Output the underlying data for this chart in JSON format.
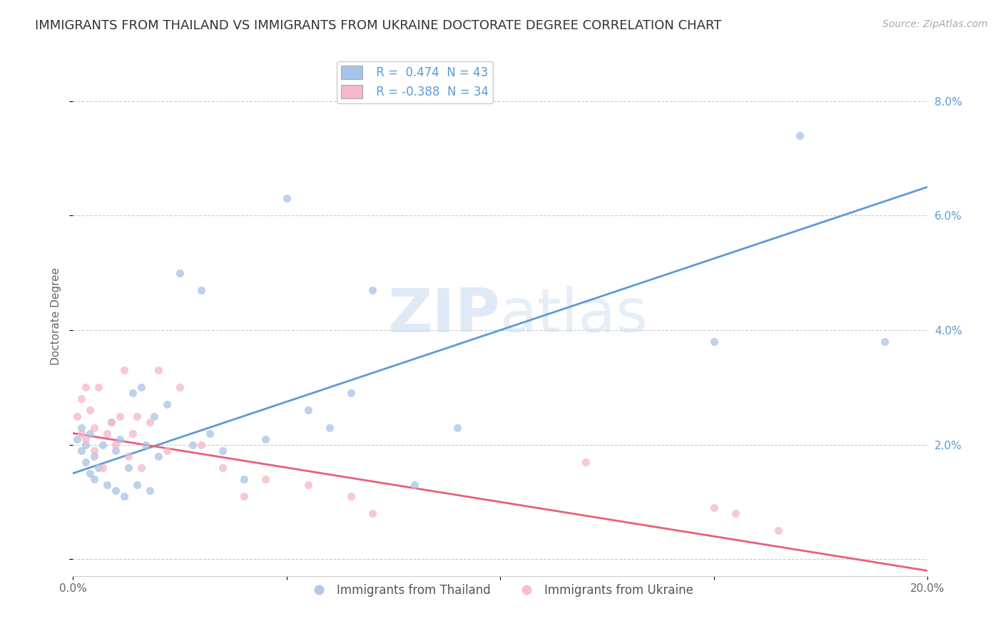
{
  "title": "IMMIGRANTS FROM THAILAND VS IMMIGRANTS FROM UKRAINE DOCTORATE DEGREE CORRELATION CHART",
  "source": "Source: ZipAtlas.com",
  "xlabel": "",
  "ylabel": "Doctorate Degree",
  "legend_label1": "Immigrants from Thailand",
  "legend_label2": "Immigrants from Ukraine",
  "R1": 0.474,
  "N1": 43,
  "R2": -0.388,
  "N2": 34,
  "color1": "#a8c4e8",
  "color2": "#f5b8c8",
  "line_color1": "#5b9bd5",
  "line_color2": "#e8607a",
  "watermark": "ZIPatlas",
  "xlim": [
    0.0,
    0.2
  ],
  "ylim": [
    -0.003,
    0.088
  ],
  "x_ticks": [
    0.0,
    0.05,
    0.1,
    0.15,
    0.2
  ],
  "y_ticks_right": [
    0.0,
    0.02,
    0.04,
    0.06,
    0.08
  ],
  "background_color": "#ffffff",
  "grid_color": "#cccccc",
  "title_fontsize": 13,
  "scatter_alpha": 0.75,
  "scatter_size": 55,
  "thailand_x": [
    0.001,
    0.002,
    0.002,
    0.003,
    0.003,
    0.004,
    0.004,
    0.005,
    0.005,
    0.006,
    0.007,
    0.008,
    0.009,
    0.01,
    0.01,
    0.011,
    0.012,
    0.013,
    0.014,
    0.015,
    0.016,
    0.017,
    0.018,
    0.019,
    0.02,
    0.022,
    0.025,
    0.028,
    0.03,
    0.032,
    0.035,
    0.04,
    0.045,
    0.05,
    0.055,
    0.06,
    0.065,
    0.07,
    0.08,
    0.09,
    0.15,
    0.17,
    0.19
  ],
  "thailand_y": [
    0.021,
    0.019,
    0.023,
    0.02,
    0.017,
    0.015,
    0.022,
    0.018,
    0.014,
    0.016,
    0.02,
    0.013,
    0.024,
    0.019,
    0.012,
    0.021,
    0.011,
    0.016,
    0.029,
    0.013,
    0.03,
    0.02,
    0.012,
    0.025,
    0.018,
    0.027,
    0.05,
    0.02,
    0.047,
    0.022,
    0.019,
    0.014,
    0.021,
    0.063,
    0.026,
    0.023,
    0.029,
    0.047,
    0.013,
    0.023,
    0.038,
    0.074,
    0.038
  ],
  "ukraine_x": [
    0.001,
    0.002,
    0.002,
    0.003,
    0.003,
    0.004,
    0.005,
    0.005,
    0.006,
    0.007,
    0.008,
    0.009,
    0.01,
    0.011,
    0.012,
    0.013,
    0.014,
    0.015,
    0.016,
    0.018,
    0.02,
    0.022,
    0.025,
    0.03,
    0.035,
    0.04,
    0.045,
    0.055,
    0.065,
    0.07,
    0.12,
    0.15,
    0.155,
    0.165
  ],
  "ukraine_y": [
    0.025,
    0.028,
    0.022,
    0.03,
    0.021,
    0.026,
    0.023,
    0.019,
    0.03,
    0.016,
    0.022,
    0.024,
    0.02,
    0.025,
    0.033,
    0.018,
    0.022,
    0.025,
    0.016,
    0.024,
    0.033,
    0.019,
    0.03,
    0.02,
    0.016,
    0.011,
    0.014,
    0.013,
    0.011,
    0.008,
    0.017,
    0.009,
    0.008,
    0.005
  ],
  "trendline1_x0": 0.0,
  "trendline1_y0": 0.015,
  "trendline1_x1": 0.2,
  "trendline1_y1": 0.065,
  "trendline2_x0": 0.0,
  "trendline2_y0": 0.022,
  "trendline2_x1": 0.2,
  "trendline2_y1": -0.002
}
